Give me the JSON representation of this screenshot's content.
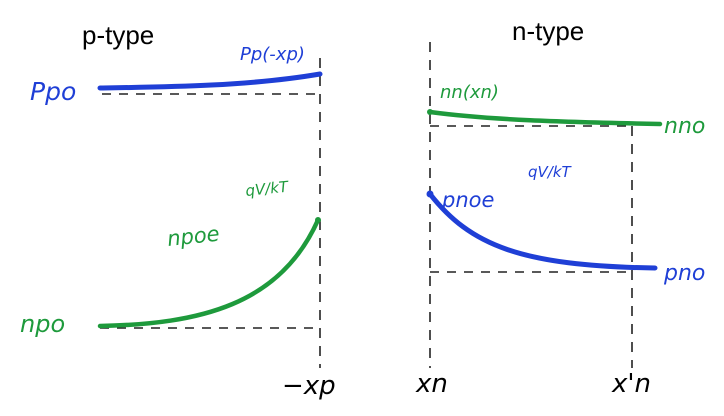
{
  "headings": {
    "p_side": "p-type",
    "n_side": "n-type"
  },
  "labels": {
    "p_po": "Ppo",
    "p_p_edge": "Pp(-xp)",
    "n_n_edge": "nn(xn)",
    "n_no": "nno",
    "n_p_edge_base": "npoe",
    "n_p_edge_exp": "qV/kT",
    "p_n_edge_base": "pnoe",
    "p_n_edge_exp": "qV/kT",
    "n_po": "npo",
    "p_no": "pno"
  },
  "axis": {
    "neg_xp": "−xp",
    "xn": "xn",
    "xn_prime": "x'n"
  },
  "colors": {
    "majority_p": "#1f3fd6",
    "minority_n": "#1e9a3c",
    "majority_n": "#1e9a3c",
    "minority_p": "#1f3fd6",
    "dashes": "#222222",
    "heading": "#000000"
  }
}
